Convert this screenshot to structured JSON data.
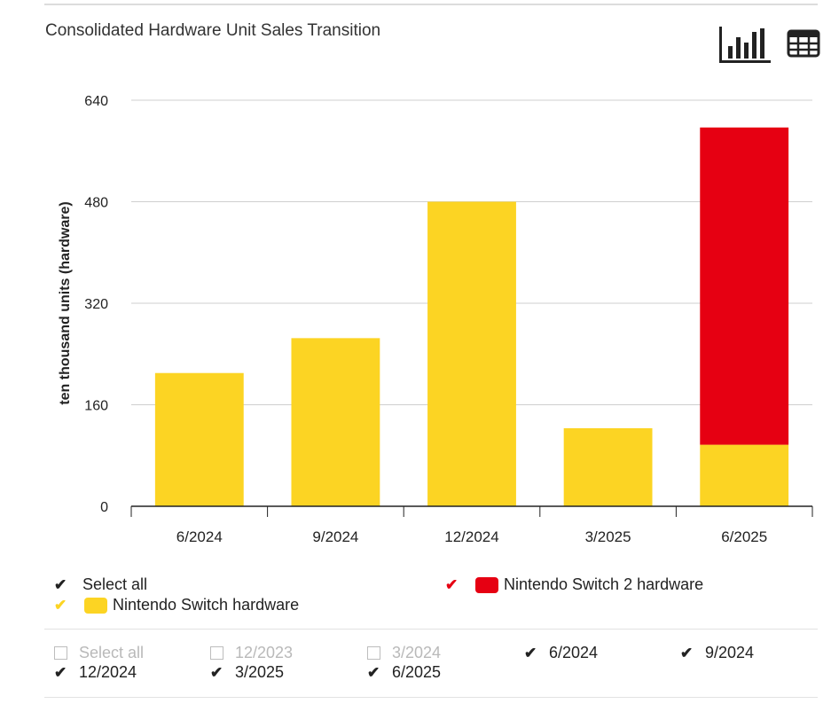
{
  "chart_data": {
    "type": "bar",
    "stacked": true,
    "title": "Consolidated Hardware Unit Sales Transition",
    "xlabel": "",
    "ylabel": "ten thousand units (hardware)",
    "ylim": [
      0,
      640
    ],
    "yticks": [
      0,
      160,
      320,
      480,
      640
    ],
    "categories": [
      "6/2024",
      "9/2024",
      "12/2024",
      "3/2025",
      "6/2025"
    ],
    "series": [
      {
        "name": "Nintendo Switch hardware",
        "color": "#fcd423",
        "values": [
          210,
          265,
          480,
          123,
          97
        ]
      },
      {
        "name": "Nintendo Switch 2 hardware",
        "color": "#e60012",
        "values": [
          0,
          0,
          0,
          0,
          500
        ]
      }
    ],
    "grid": true
  },
  "toolbar": {
    "chart_view_icon": "bar-chart-icon",
    "table_view_icon": "table-icon"
  },
  "legend": {
    "select_all_label": "Select all",
    "items": [
      {
        "label": "Nintendo Switch 2 hardware",
        "color": "#e60012",
        "check_color": "#e60012",
        "checked": true
      },
      {
        "label": "Nintendo Switch hardware",
        "color": "#fcd423",
        "check_color": "#fcd423",
        "checked": true
      }
    ]
  },
  "period_filter": {
    "items": [
      {
        "label": "Select all",
        "checked": false
      },
      {
        "label": "12/2023",
        "checked": false
      },
      {
        "label": "3/2024",
        "checked": false
      },
      {
        "label": "6/2024",
        "checked": true
      },
      {
        "label": "9/2024",
        "checked": true
      },
      {
        "label": "12/2024",
        "checked": true
      },
      {
        "label": "3/2025",
        "checked": true
      },
      {
        "label": "6/2025",
        "checked": true
      }
    ]
  },
  "check_glyph": "✔"
}
